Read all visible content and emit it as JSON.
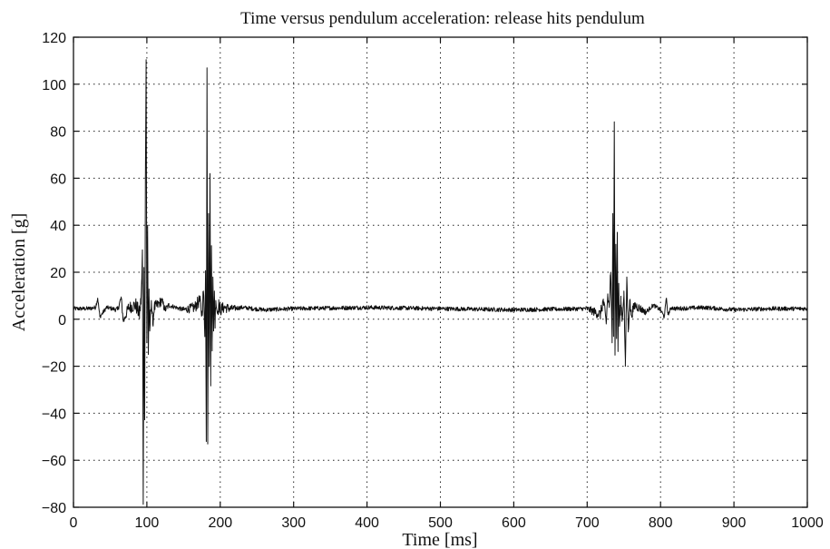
{
  "chart_data": {
    "type": "line",
    "title": "Time versus pendulum acceleration: release hits pendulum",
    "xlabel": "Time [ms]",
    "ylabel": "Acceleration [g]",
    "xlim": [
      0,
      1000
    ],
    "ylim": [
      -80,
      120
    ],
    "x_ticks": [
      0,
      100,
      200,
      300,
      400,
      500,
      600,
      700,
      800,
      900,
      1000
    ],
    "y_ticks": [
      -80,
      -60,
      -40,
      -20,
      0,
      20,
      40,
      60,
      80,
      100,
      120
    ],
    "grid": true,
    "baseline_value": 4.5,
    "series": [
      {
        "color": "#111111",
        "x": [
          0,
          20,
          30,
          33,
          36,
          45,
          60,
          65,
          68,
          75,
          85,
          90,
          92,
          93,
          94,
          95,
          96,
          97,
          98,
          99,
          100,
          101,
          102,
          103,
          104,
          106,
          108,
          110,
          115,
          120,
          125,
          130,
          140,
          150,
          165,
          172,
          175,
          177,
          179,
          180,
          181,
          182,
          183,
          184,
          185,
          186,
          187,
          188,
          189,
          190,
          191,
          192,
          193,
          194,
          196,
          198,
          200,
          205,
          215,
          230,
          260,
          300,
          400,
          500,
          600,
          700,
          718,
          722,
          726,
          728,
          730,
          732,
          734,
          735,
          736,
          737,
          738,
          739,
          740,
          741,
          742,
          743,
          744,
          746,
          748,
          750,
          752,
          754,
          756,
          758,
          760,
          765,
          770,
          780,
          790,
          800,
          805,
          808,
          810,
          815,
          820,
          860,
          900,
          950,
          1000
        ],
        "values": [
          4.5,
          4.5,
          5,
          9,
          1,
          5,
          4,
          9,
          -1,
          5,
          6,
          2,
          8,
          15,
          28,
          -77,
          20,
          -40,
          60,
          109,
          -10,
          40,
          -15,
          10,
          -5,
          8,
          -2,
          5,
          6,
          8,
          4,
          6,
          5,
          4,
          5,
          8,
          2,
          12,
          -5,
          20,
          -52,
          107,
          -50,
          45,
          -20,
          62,
          -25,
          30,
          -10,
          18,
          -5,
          12,
          -2,
          8,
          3,
          6,
          4,
          5,
          4.5,
          5,
          4,
          4.5,
          5,
          4.5,
          4,
          4.5,
          2,
          8,
          -2,
          10,
          5,
          20,
          -10,
          45,
          -5,
          84,
          -14,
          30,
          -8,
          37,
          -12,
          15,
          -3,
          8,
          0,
          12,
          -20,
          18,
          -5,
          8,
          2,
          6,
          5,
          3,
          6,
          4,
          1,
          9,
          2,
          5,
          4.5,
          5,
          4,
          4.5,
          4.5
        ]
      }
    ]
  }
}
